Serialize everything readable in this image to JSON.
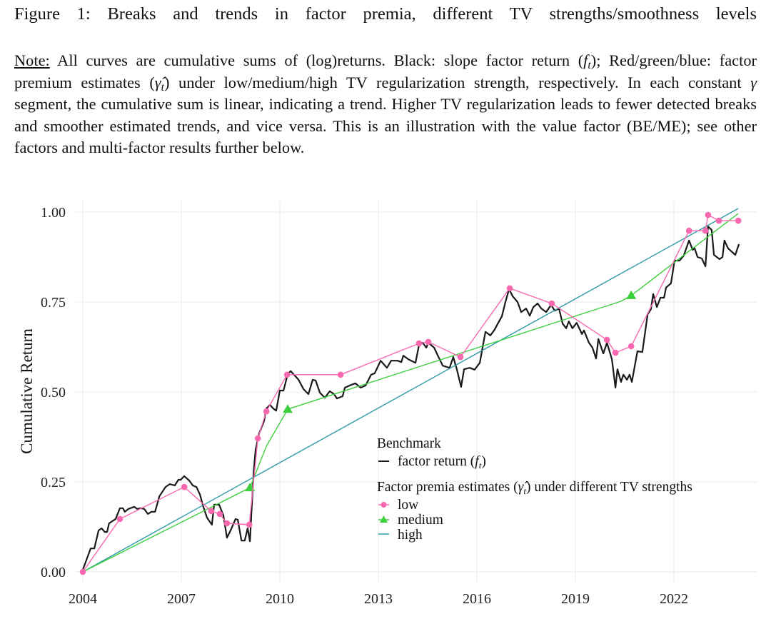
{
  "figure": {
    "title": "Figure 1: Breaks and trends in factor premia, different TV strengths/smoothness levels",
    "note_label": "Note:",
    "note_p1": " All curves are cumulative sums of (log)returns.  Black:  slope factor return (",
    "f": "f",
    "t": "t",
    "note_p2": "); Red/green/blue: factor premium estimates (",
    "gammahat": "γ̂",
    "note_p3": ") under low/medium/high TV regularization strength, respectively.  In each constant ",
    "gamma": "γ",
    "note_p4": " segment, the cumulative sum is linear, indicating a trend.  Higher TV regularization leads to fewer detected breaks and smoother estimated trends, and vice versa. This is an illustration with the value factor (BE/ME); see other factors and multi-factor results further below."
  },
  "chart_data": {
    "type": "line",
    "ylabel": "Cumulative Return",
    "xlabel": "",
    "xlim": [
      2004,
      2024
    ],
    "ylim": [
      0,
      1.0
    ],
    "xticks": [
      2004,
      2007,
      2010,
      2013,
      2016,
      2019,
      2022
    ],
    "xtick_labels": [
      "2004",
      "2007",
      "2010",
      "2013",
      "2016",
      "2019",
      "2022"
    ],
    "yticks": [
      0,
      0.25,
      0.5,
      0.75,
      1.0
    ],
    "ytick_labels": [
      "0.00",
      "0.25",
      "0.50",
      "0.75",
      "1.00"
    ],
    "grid": true,
    "legend": {
      "placement": "bottom-right",
      "group1_title": "Benchmark",
      "group1_item": "factor return (",
      "group1_item_f": "f",
      "group1_item_t": "t",
      "group1_item_close": ")",
      "group2_title_a": "Factor premia estimates (",
      "group2_title_g": "γ̂",
      "group2_title_t": "t",
      "group2_title_b": ") under different TV strengths",
      "items": [
        "low",
        "medium",
        "high"
      ]
    },
    "colors": {
      "factor": "#1a1a1a",
      "low": "#f768b0",
      "medium": "#3ccf3c",
      "high": "#2e9aa6"
    },
    "series": [
      {
        "key": "factor",
        "marker": "none",
        "points": [
          [
            2004.0,
            0.006
          ],
          [
            2004.24,
            0.065
          ],
          [
            2004.35,
            0.065
          ],
          [
            2004.48,
            0.115
          ],
          [
            2004.57,
            0.121
          ],
          [
            2004.67,
            0.111
          ],
          [
            2004.74,
            0.111
          ],
          [
            2004.8,
            0.135
          ],
          [
            2005.0,
            0.147
          ],
          [
            2005.13,
            0.177
          ],
          [
            2005.22,
            0.177
          ],
          [
            2005.28,
            0.167
          ],
          [
            2005.39,
            0.175
          ],
          [
            2005.57,
            0.181
          ],
          [
            2005.65,
            0.175
          ],
          [
            2005.76,
            0.177
          ],
          [
            2005.87,
            0.175
          ],
          [
            2005.98,
            0.161
          ],
          [
            2006.09,
            0.167
          ],
          [
            2006.2,
            0.167
          ],
          [
            2006.33,
            0.21
          ],
          [
            2006.52,
            0.236
          ],
          [
            2006.65,
            0.244
          ],
          [
            2006.8,
            0.24
          ],
          [
            2006.91,
            0.256
          ],
          [
            2006.98,
            0.256
          ],
          [
            2007.09,
            0.266
          ],
          [
            2007.24,
            0.254
          ],
          [
            2007.35,
            0.24
          ],
          [
            2007.46,
            0.236
          ],
          [
            2007.57,
            0.214
          ],
          [
            2007.67,
            0.181
          ],
          [
            2007.78,
            0.151
          ],
          [
            2007.93,
            0.131
          ],
          [
            2008.0,
            0.187
          ],
          [
            2008.15,
            0.187
          ],
          [
            2008.28,
            0.157
          ],
          [
            2008.39,
            0.095
          ],
          [
            2008.5,
            0.115
          ],
          [
            2008.65,
            0.147
          ],
          [
            2008.72,
            0.145
          ],
          [
            2008.83,
            0.087
          ],
          [
            2008.93,
            0.087
          ],
          [
            2009.02,
            0.121
          ],
          [
            2009.09,
            0.085
          ],
          [
            2009.2,
            0.274
          ],
          [
            2009.26,
            0.339
          ],
          [
            2009.37,
            0.385
          ],
          [
            2009.52,
            0.419
          ],
          [
            2009.59,
            0.454
          ],
          [
            2009.7,
            0.464
          ],
          [
            2009.8,
            0.454
          ],
          [
            2009.89,
            0.448
          ],
          [
            2010.0,
            0.504
          ],
          [
            2010.11,
            0.504
          ],
          [
            2010.17,
            0.524
          ],
          [
            2010.24,
            0.55
          ],
          [
            2010.33,
            0.558
          ],
          [
            2010.57,
            0.534
          ],
          [
            2010.72,
            0.508
          ],
          [
            2010.87,
            0.494
          ],
          [
            2011.0,
            0.534
          ],
          [
            2011.09,
            0.532
          ],
          [
            2011.22,
            0.498
          ],
          [
            2011.37,
            0.484
          ],
          [
            2011.52,
            0.502
          ],
          [
            2011.65,
            0.494
          ],
          [
            2011.74,
            0.482
          ],
          [
            2011.91,
            0.488
          ],
          [
            2011.98,
            0.512
          ],
          [
            2012.13,
            0.518
          ],
          [
            2012.3,
            0.524
          ],
          [
            2012.46,
            0.512
          ],
          [
            2012.61,
            0.518
          ],
          [
            2012.78,
            0.548
          ],
          [
            2012.89,
            0.552
          ],
          [
            2013.07,
            0.587
          ],
          [
            2013.26,
            0.567
          ],
          [
            2013.39,
            0.587
          ],
          [
            2013.59,
            0.587
          ],
          [
            2013.7,
            0.583
          ],
          [
            2013.76,
            0.601
          ],
          [
            2013.91,
            0.591
          ],
          [
            2014.13,
            0.581
          ],
          [
            2014.24,
            0.631
          ],
          [
            2014.35,
            0.637
          ],
          [
            2014.46,
            0.623
          ],
          [
            2014.52,
            0.637
          ],
          [
            2014.7,
            0.623
          ],
          [
            2014.8,
            0.603
          ],
          [
            2014.96,
            0.573
          ],
          [
            2015.17,
            0.567
          ],
          [
            2015.28,
            0.597
          ],
          [
            2015.39,
            0.563
          ],
          [
            2015.52,
            0.514
          ],
          [
            2015.61,
            0.563
          ],
          [
            2015.78,
            0.567
          ],
          [
            2015.93,
            0.562
          ],
          [
            2016.09,
            0.581
          ],
          [
            2016.2,
            0.637
          ],
          [
            2016.26,
            0.667
          ],
          [
            2016.41,
            0.657
          ],
          [
            2016.54,
            0.673
          ],
          [
            2016.65,
            0.692
          ],
          [
            2016.76,
            0.71
          ],
          [
            2016.87,
            0.75
          ],
          [
            2016.98,
            0.786
          ],
          [
            2017.09,
            0.766
          ],
          [
            2017.24,
            0.75
          ],
          [
            2017.35,
            0.722
          ],
          [
            2017.5,
            0.732
          ],
          [
            2017.61,
            0.712
          ],
          [
            2017.72,
            0.736
          ],
          [
            2017.85,
            0.746
          ],
          [
            2017.96,
            0.732
          ],
          [
            2018.11,
            0.722
          ],
          [
            2018.26,
            0.742
          ],
          [
            2018.37,
            0.726
          ],
          [
            2018.5,
            0.732
          ],
          [
            2018.61,
            0.69
          ],
          [
            2018.72,
            0.677
          ],
          [
            2018.8,
            0.696
          ],
          [
            2018.91,
            0.677
          ],
          [
            2019.04,
            0.692
          ],
          [
            2019.2,
            0.661
          ],
          [
            2019.26,
            0.671
          ],
          [
            2019.41,
            0.637
          ],
          [
            2019.52,
            0.623
          ],
          [
            2019.63,
            0.593
          ],
          [
            2019.7,
            0.647
          ],
          [
            2019.85,
            0.607
          ],
          [
            2019.96,
            0.637
          ],
          [
            2020.11,
            0.591
          ],
          [
            2020.22,
            0.512
          ],
          [
            2020.28,
            0.563
          ],
          [
            2020.39,
            0.528
          ],
          [
            2020.46,
            0.548
          ],
          [
            2020.57,
            0.534
          ],
          [
            2020.65,
            0.548
          ],
          [
            2020.72,
            0.528
          ],
          [
            2020.89,
            0.613
          ],
          [
            2021.04,
            0.611
          ],
          [
            2021.2,
            0.716
          ],
          [
            2021.3,
            0.73
          ],
          [
            2021.37,
            0.772
          ],
          [
            2021.48,
            0.736
          ],
          [
            2021.59,
            0.762
          ],
          [
            2021.7,
            0.762
          ],
          [
            2021.76,
            0.79
          ],
          [
            2021.91,
            0.802
          ],
          [
            2022.02,
            0.865
          ],
          [
            2022.17,
            0.865
          ],
          [
            2022.3,
            0.879
          ],
          [
            2022.46,
            0.921
          ],
          [
            2022.57,
            0.895
          ],
          [
            2022.63,
            0.899
          ],
          [
            2022.72,
            0.875
          ],
          [
            2022.85,
            0.871
          ],
          [
            2022.96,
            0.849
          ],
          [
            2023.04,
            0.96
          ],
          [
            2023.15,
            0.95
          ],
          [
            2023.22,
            0.881
          ],
          [
            2023.39,
            0.869
          ],
          [
            2023.48,
            0.875
          ],
          [
            2023.54,
            0.921
          ],
          [
            2023.65,
            0.899
          ],
          [
            2023.87,
            0.881
          ],
          [
            2023.98,
            0.911
          ]
        ]
      },
      {
        "key": "high",
        "marker": "none",
        "points": [
          [
            2004.0,
            0.0
          ],
          [
            2023.96,
            1.01
          ]
        ]
      },
      {
        "key": "medium",
        "marker": "triangle",
        "points": [
          [
            2004.0,
            0.0
          ],
          [
            2009.09,
            0.234
          ],
          [
            2009.59,
            0.349
          ],
          [
            2010.24,
            0.452
          ],
          [
            2020.39,
            0.752
          ],
          [
            2020.7,
            0.768
          ],
          [
            2023.96,
            0.996
          ]
        ],
        "marked": [
          [
            2009.09,
            0.234
          ],
          [
            2010.24,
            0.452
          ],
          [
            2020.7,
            0.768
          ]
        ]
      },
      {
        "key": "low",
        "marker": "circle",
        "points": [
          [
            2004.0,
            0.0
          ],
          [
            2005.13,
            0.147
          ],
          [
            2007.09,
            0.236
          ],
          [
            2007.91,
            0.169
          ],
          [
            2008.17,
            0.161
          ],
          [
            2008.39,
            0.135
          ],
          [
            2009.07,
            0.131
          ],
          [
            2009.33,
            0.371
          ],
          [
            2009.59,
            0.446
          ],
          [
            2010.22,
            0.548
          ],
          [
            2011.85,
            0.548
          ],
          [
            2014.24,
            0.635
          ],
          [
            2014.52,
            0.639
          ],
          [
            2015.5,
            0.597
          ],
          [
            2017.0,
            0.788
          ],
          [
            2018.28,
            0.746
          ],
          [
            2019.96,
            0.645
          ],
          [
            2020.22,
            0.609
          ],
          [
            2020.7,
            0.627
          ],
          [
            2022.46,
            0.948
          ],
          [
            2022.96,
            0.948
          ],
          [
            2023.04,
            0.992
          ],
          [
            2023.37,
            0.976
          ],
          [
            2023.96,
            0.976
          ]
        ]
      }
    ]
  }
}
